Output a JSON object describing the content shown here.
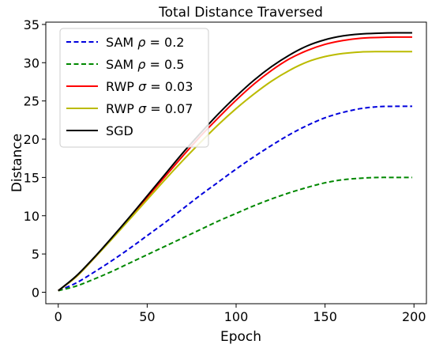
{
  "chart_data": {
    "type": "line",
    "title": "Total Distance Traversed",
    "xlabel": "Epoch",
    "ylabel": "Distance",
    "xlim": [
      -7,
      207
    ],
    "ylim": [
      -1.5,
      35.3
    ],
    "xticks": [
      0,
      50,
      100,
      150,
      200
    ],
    "yticks": [
      0,
      5,
      10,
      15,
      20,
      25,
      30,
      35
    ],
    "grid": false,
    "legend_position": "top-left",
    "x": [
      0,
      10,
      20,
      30,
      40,
      50,
      60,
      70,
      80,
      90,
      100,
      110,
      120,
      130,
      140,
      150,
      160,
      170,
      180,
      190,
      199
    ],
    "series": [
      {
        "name": "SAM ρ = 0.2",
        "legend_main": "SAM ",
        "legend_symbol": "ρ",
        "legend_value": " = 0.2",
        "color": "#0000dd",
        "dash": "dashed",
        "values": [
          0.2,
          1.2,
          2.6,
          4.1,
          5.7,
          7.4,
          9.1,
          10.9,
          12.7,
          14.4,
          16.1,
          17.7,
          19.2,
          20.6,
          21.8,
          22.8,
          23.5,
          24.0,
          24.25,
          24.3,
          24.3
        ]
      },
      {
        "name": "SAM ρ = 0.5",
        "legend_main": "SAM ",
        "legend_symbol": "ρ",
        "legend_value": " = 0.5",
        "color": "#008800",
        "dash": "dashed",
        "values": [
          0.2,
          0.8,
          1.7,
          2.7,
          3.8,
          4.9,
          6.0,
          7.1,
          8.2,
          9.3,
          10.3,
          11.3,
          12.2,
          13.0,
          13.7,
          14.3,
          14.7,
          14.9,
          15.0,
          15.0,
          15.0
        ]
      },
      {
        "name": "RWP σ = 0.03",
        "legend_main": "RWP ",
        "legend_symbol": "σ",
        "legend_value": " = 0.03",
        "color": "#ff0000",
        "dash": "solid",
        "values": [
          0.2,
          2.0,
          4.4,
          7.0,
          9.7,
          12.4,
          15.1,
          17.8,
          20.4,
          22.8,
          25.1,
          27.2,
          29.0,
          30.5,
          31.6,
          32.4,
          32.9,
          33.2,
          33.3,
          33.35,
          33.35
        ]
      },
      {
        "name": "RWP σ = 0.07",
        "legend_main": "RWP ",
        "legend_symbol": "σ",
        "legend_value": " = 0.07",
        "color": "#bbbb00",
        "dash": "solid",
        "values": [
          0.2,
          2.0,
          4.4,
          6.9,
          9.5,
          12.1,
          14.7,
          17.2,
          19.6,
          21.9,
          24.0,
          25.9,
          27.6,
          29.0,
          30.1,
          30.8,
          31.2,
          31.4,
          31.45,
          31.45,
          31.45
        ]
      },
      {
        "name": "SGD",
        "legend_main": "SGD",
        "legend_symbol": "",
        "legend_value": "",
        "color": "#000000",
        "dash": "solid",
        "values": [
          0.2,
          2.1,
          4.5,
          7.1,
          9.8,
          12.6,
          15.4,
          18.2,
          20.8,
          23.3,
          25.6,
          27.7,
          29.5,
          31.0,
          32.2,
          33.0,
          33.5,
          33.75,
          33.85,
          33.9,
          33.9
        ]
      }
    ]
  }
}
